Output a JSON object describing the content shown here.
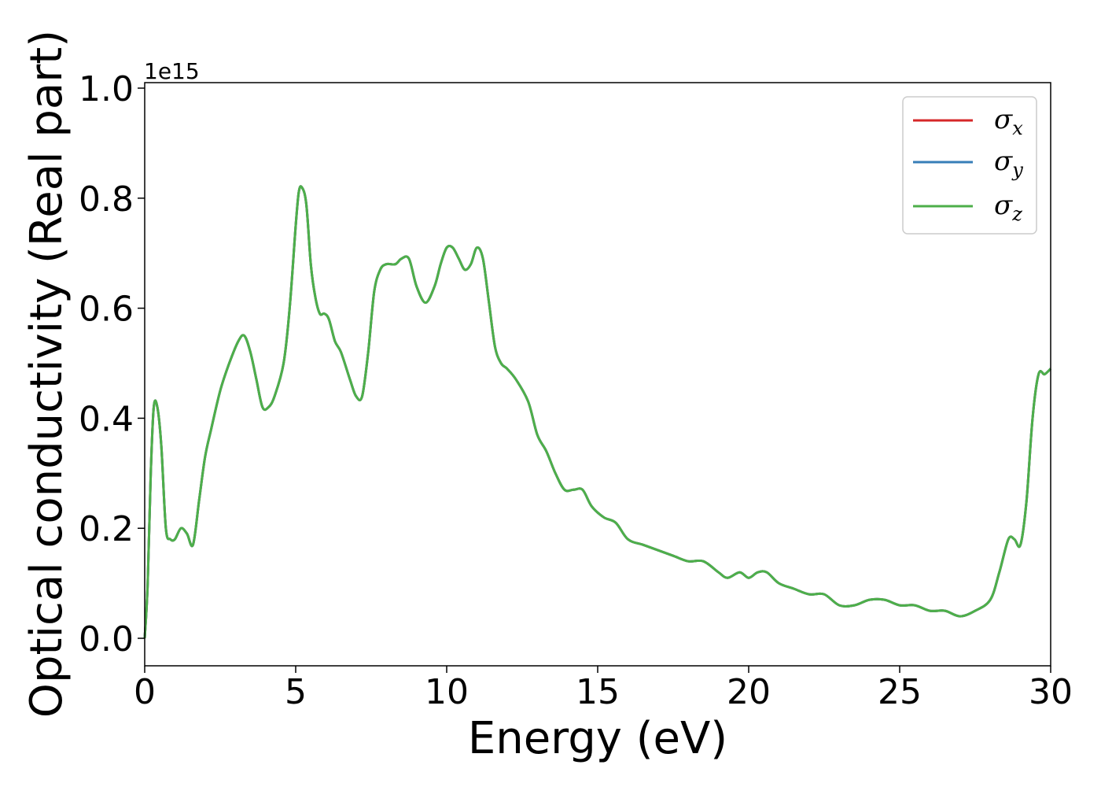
{
  "chart_data": {
    "type": "line",
    "title": "",
    "xlabel": "Energy (eV)",
    "ylabel": "Optical conductivity (Real part)",
    "y_offset_label": "1e15",
    "xlim": [
      0,
      30
    ],
    "ylim": [
      -0.05,
      1.01
    ],
    "xticks": [
      0,
      5,
      10,
      15,
      20,
      25,
      30
    ],
    "xtick_labels": [
      "0",
      "5",
      "10",
      "15",
      "20",
      "25",
      "30"
    ],
    "yticks": [
      0.0,
      0.2,
      0.4,
      0.6,
      0.8,
      1.0
    ],
    "ytick_labels": [
      "0.0",
      "0.2",
      "0.4",
      "0.6",
      "0.8",
      "1.0"
    ],
    "grid": false,
    "legend_position": "top-right",
    "series": [
      {
        "name": "σx",
        "symbol": "σ",
        "subscript": "x",
        "color": "#d62728",
        "curve": "shared"
      },
      {
        "name": "σy",
        "symbol": "σ",
        "subscript": "y",
        "color": "#377eb8",
        "curve": "shared"
      },
      {
        "name": "σz",
        "symbol": "σ",
        "subscript": "z",
        "color": "#4daf4a",
        "curve": "shared"
      }
    ],
    "shared_curve": {
      "x": [
        0,
        0.1,
        0.2,
        0.3,
        0.42,
        0.55,
        0.7,
        0.85,
        1.0,
        1.2,
        1.4,
        1.6,
        1.8,
        2.0,
        2.2,
        2.5,
        2.8,
        3.1,
        3.3,
        3.5,
        3.7,
        3.9,
        4.1,
        4.3,
        4.6,
        4.8,
        5.0,
        5.1,
        5.2,
        5.35,
        5.5,
        5.65,
        5.8,
        5.95,
        6.1,
        6.3,
        6.5,
        6.8,
        7.0,
        7.2,
        7.4,
        7.6,
        7.8,
        8.0,
        8.3,
        8.5,
        8.75,
        9.0,
        9.3,
        9.6,
        9.8,
        10.0,
        10.2,
        10.4,
        10.6,
        10.8,
        11.0,
        11.2,
        11.4,
        11.6,
        11.8,
        12.0,
        12.3,
        12.7,
        13.0,
        13.3,
        13.6,
        13.9,
        14.2,
        14.5,
        14.8,
        15.2,
        15.6,
        16.0,
        16.5,
        17.0,
        17.5,
        18.0,
        18.5,
        19.0,
        19.3,
        19.7,
        20.0,
        20.3,
        20.6,
        21.0,
        21.5,
        22.0,
        22.5,
        23.0,
        23.5,
        24.0,
        24.5,
        25.0,
        25.5,
        26.0,
        26.5,
        27.0,
        27.5,
        28.0,
        28.3,
        28.6,
        28.8,
        29.0,
        29.2,
        29.4,
        29.6,
        29.8,
        30.0
      ],
      "y": [
        0.0,
        0.1,
        0.3,
        0.42,
        0.42,
        0.35,
        0.2,
        0.18,
        0.18,
        0.2,
        0.19,
        0.17,
        0.25,
        0.33,
        0.38,
        0.45,
        0.5,
        0.54,
        0.55,
        0.52,
        0.47,
        0.42,
        0.42,
        0.44,
        0.5,
        0.6,
        0.75,
        0.81,
        0.82,
        0.79,
        0.68,
        0.62,
        0.59,
        0.59,
        0.58,
        0.54,
        0.52,
        0.47,
        0.44,
        0.44,
        0.52,
        0.63,
        0.67,
        0.68,
        0.68,
        0.69,
        0.69,
        0.64,
        0.61,
        0.64,
        0.68,
        0.71,
        0.71,
        0.69,
        0.67,
        0.68,
        0.71,
        0.69,
        0.61,
        0.53,
        0.5,
        0.49,
        0.47,
        0.43,
        0.37,
        0.34,
        0.3,
        0.27,
        0.27,
        0.27,
        0.24,
        0.22,
        0.21,
        0.18,
        0.17,
        0.16,
        0.15,
        0.14,
        0.14,
        0.12,
        0.11,
        0.12,
        0.11,
        0.12,
        0.12,
        0.1,
        0.09,
        0.08,
        0.08,
        0.06,
        0.06,
        0.07,
        0.07,
        0.06,
        0.06,
        0.05,
        0.05,
        0.04,
        0.05,
        0.07,
        0.12,
        0.18,
        0.18,
        0.17,
        0.25,
        0.4,
        0.48,
        0.48,
        0.49
      ]
    }
  }
}
